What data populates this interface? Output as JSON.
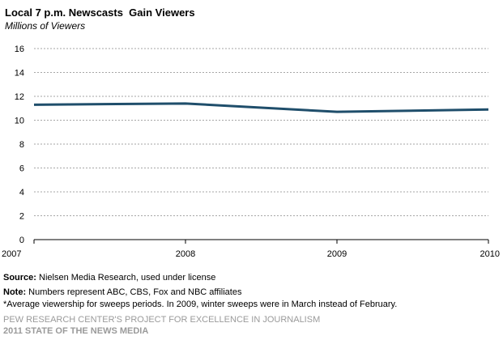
{
  "title": "Local 7 p.m. Newscasts  Gain Viewers",
  "subtitle": "Millions of Viewers",
  "chart_data": {
    "type": "line",
    "title": "Local 7 p.m. Newscasts  Gain Viewers",
    "subtitle": "Millions of Viewers",
    "xlabel": "",
    "ylabel": "Millions of Viewers",
    "x": [
      "2007",
      "2008",
      "2009",
      "2010"
    ],
    "series": [
      {
        "values": [
          11.3,
          11.4,
          10.7,
          10.9
        ]
      }
    ],
    "yticks": [
      "0",
      "2",
      "4",
      "6",
      "8",
      "10",
      "12",
      "14",
      "16"
    ],
    "ylim": [
      0,
      16
    ],
    "grid": true,
    "legend": "none",
    "colors": {
      "line": "#1f4e6b",
      "grid": "#a6a6a6",
      "axis": "#000000"
    }
  },
  "footer": {
    "source_label": "Source:",
    "source_text": " Nielsen Media Research, used under license",
    "note_label": "Note:",
    "note_text": " Numbers represent ABC, CBS, Fox and NBC affiliates",
    "asterisk_note": "*Average viewership for sweeps periods. In 2009, winter sweeps were in March instead of February."
  },
  "credits": {
    "line1": "PEW RESEARCH CENTER'S PROJECT FOR EXCELLENCE IN JOURNALISM",
    "line2": "2011 STATE OF THE NEWS MEDIA"
  }
}
